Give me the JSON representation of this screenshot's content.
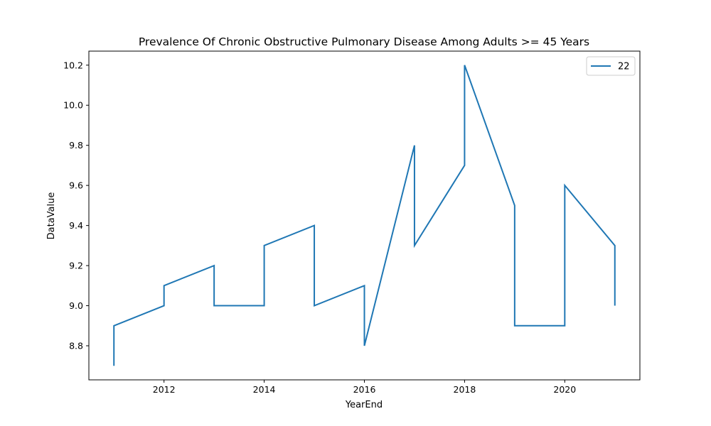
{
  "chart_data": {
    "type": "line",
    "title": "Prevalence Of Chronic Obstructive Pulmonary Disease Among Adults >= 45 Years",
    "xlabel": "YearEnd",
    "ylabel": "DataValue",
    "xlim": [
      2010.5,
      2021.5
    ],
    "ylim": [
      8.63,
      10.27
    ],
    "xticks": [
      2012,
      2014,
      2016,
      2018,
      2020
    ],
    "xtick_labels": [
      "2012",
      "2014",
      "2016",
      "2018",
      "2020"
    ],
    "yticks": [
      8.8,
      9.0,
      9.2,
      9.4,
      9.6,
      9.8,
      10.0,
      10.2
    ],
    "ytick_labels": [
      "8.8",
      "9.0",
      "9.2",
      "9.4",
      "9.6",
      "9.8",
      "10.0",
      "10.2"
    ],
    "grid": false,
    "legend_position": "top-right",
    "series": [
      {
        "name": "22",
        "color": "#1f77b4",
        "x": [
          2011,
          2011,
          2012,
          2012,
          2013,
          2013,
          2014,
          2014,
          2015,
          2015,
          2016,
          2016,
          2017,
          2017,
          2018,
          2018,
          2019,
          2019,
          2020,
          2020,
          2021,
          2021
        ],
        "y": [
          8.7,
          8.9,
          9.0,
          9.1,
          9.2,
          9.0,
          9.0,
          9.3,
          9.4,
          9.0,
          9.1,
          8.8,
          9.8,
          9.3,
          9.7,
          10.2,
          9.5,
          8.9,
          8.9,
          9.6,
          9.3,
          9.0
        ]
      }
    ]
  }
}
